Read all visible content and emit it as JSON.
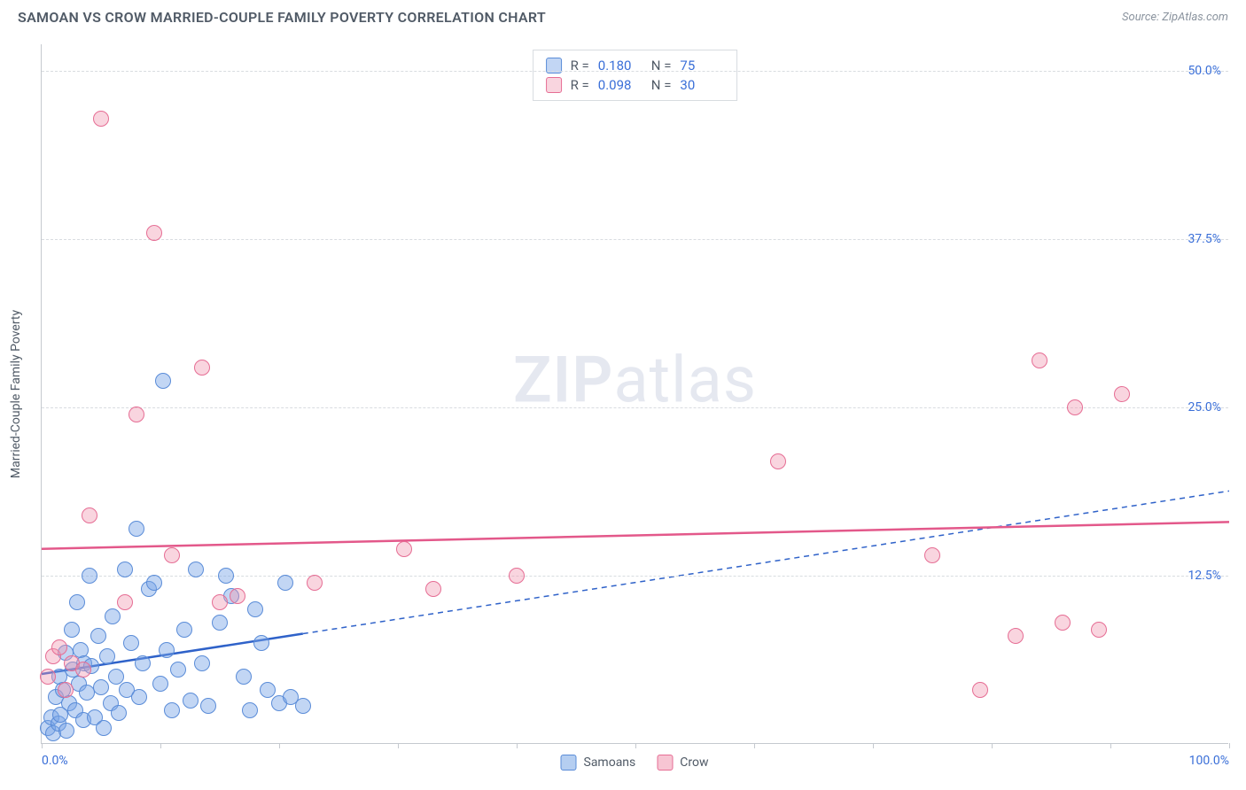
{
  "header": {
    "title": "SAMOAN VS CROW MARRIED-COUPLE FAMILY POVERTY CORRELATION CHART",
    "source": "Source: ZipAtlas.com"
  },
  "watermark": {
    "bold": "ZIP",
    "light": "atlas"
  },
  "chart": {
    "type": "scatter",
    "ylabel": "Married-Couple Family Poverty",
    "xlim": [
      0,
      100
    ],
    "ylim": [
      0,
      52
    ],
    "xticks": [
      0,
      10,
      20,
      30,
      40,
      50,
      60,
      70,
      80,
      90,
      100
    ],
    "xticklabels": {
      "0": "0.0%",
      "100": "100.0%"
    },
    "yticks": [
      12.5,
      25.0,
      37.5,
      50.0
    ],
    "yticklabels": [
      "12.5%",
      "25.0%",
      "37.5%",
      "50.0%"
    ],
    "background_color": "#ffffff",
    "grid_color": "#d8dce0",
    "axis_color": "#c5c9cf",
    "tick_label_color": "#3a6fd8",
    "text_color": "#505a66",
    "title_fontsize": 16,
    "label_fontsize": 14,
    "marker_radius": 9,
    "marker_stroke_width": 1.5,
    "series": [
      {
        "name": "Samoans",
        "fill": "rgba(120,165,230,0.45)",
        "stroke": "#5a8cd8",
        "line_color": "#2f62c9",
        "R": "0.180",
        "N": "75",
        "trend": {
          "x1": 0,
          "y1": 5.2,
          "x2": 100,
          "y2": 18.8,
          "solid_until_x": 22
        },
        "points": [
          [
            0.5,
            1.2
          ],
          [
            0.8,
            2.0
          ],
          [
            1.0,
            0.8
          ],
          [
            1.2,
            3.5
          ],
          [
            1.4,
            1.5
          ],
          [
            1.5,
            5.0
          ],
          [
            1.6,
            2.2
          ],
          [
            1.8,
            4.0
          ],
          [
            2.0,
            6.8
          ],
          [
            2.1,
            1.0
          ],
          [
            2.3,
            3.0
          ],
          [
            2.5,
            8.5
          ],
          [
            2.6,
            5.5
          ],
          [
            2.8,
            2.5
          ],
          [
            3.0,
            10.5
          ],
          [
            3.1,
            4.5
          ],
          [
            3.3,
            7.0
          ],
          [
            3.5,
            1.8
          ],
          [
            3.6,
            6.0
          ],
          [
            3.8,
            3.8
          ],
          [
            4.0,
            12.5
          ],
          [
            4.2,
            5.8
          ],
          [
            4.5,
            2.0
          ],
          [
            4.8,
            8.0
          ],
          [
            5.0,
            4.2
          ],
          [
            5.2,
            1.2
          ],
          [
            5.5,
            6.5
          ],
          [
            5.8,
            3.0
          ],
          [
            6.0,
            9.5
          ],
          [
            6.3,
            5.0
          ],
          [
            6.5,
            2.3
          ],
          [
            7.0,
            13.0
          ],
          [
            7.2,
            4.0
          ],
          [
            7.5,
            7.5
          ],
          [
            8.0,
            16.0
          ],
          [
            8.2,
            3.5
          ],
          [
            8.5,
            6.0
          ],
          [
            9.0,
            11.5
          ],
          [
            9.5,
            12.0
          ],
          [
            10.0,
            4.5
          ],
          [
            10.2,
            27.0
          ],
          [
            10.5,
            7.0
          ],
          [
            11.0,
            2.5
          ],
          [
            11.5,
            5.5
          ],
          [
            12.0,
            8.5
          ],
          [
            12.5,
            3.2
          ],
          [
            13.0,
            13.0
          ],
          [
            13.5,
            6.0
          ],
          [
            14.0,
            2.8
          ],
          [
            15.0,
            9.0
          ],
          [
            15.5,
            12.5
          ],
          [
            16.0,
            11.0
          ],
          [
            17.0,
            5.0
          ],
          [
            17.5,
            2.5
          ],
          [
            18.0,
            10.0
          ],
          [
            18.5,
            7.5
          ],
          [
            19.0,
            4.0
          ],
          [
            20.0,
            3.0
          ],
          [
            20.5,
            12.0
          ],
          [
            21.0,
            3.5
          ],
          [
            22.0,
            2.8
          ]
        ]
      },
      {
        "name": "Crow",
        "fill": "rgba(240,150,175,0.40)",
        "stroke": "#e66d94",
        "line_color": "#e3588a",
        "R": "0.098",
        "N": "30",
        "trend": {
          "x1": 0,
          "y1": 14.5,
          "x2": 100,
          "y2": 16.5,
          "solid_until_x": 100
        },
        "points": [
          [
            0.5,
            5.0
          ],
          [
            1.0,
            6.5
          ],
          [
            1.5,
            7.2
          ],
          [
            2.0,
            4.0
          ],
          [
            2.5,
            6.0
          ],
          [
            3.5,
            5.5
          ],
          [
            4.0,
            17.0
          ],
          [
            5.0,
            46.5
          ],
          [
            7.0,
            10.5
          ],
          [
            8.0,
            24.5
          ],
          [
            9.5,
            38.0
          ],
          [
            11.0,
            14.0
          ],
          [
            13.5,
            28.0
          ],
          [
            15.0,
            10.5
          ],
          [
            16.5,
            11.0
          ],
          [
            23.0,
            12.0
          ],
          [
            30.5,
            14.5
          ],
          [
            33.0,
            11.5
          ],
          [
            40.0,
            12.5
          ],
          [
            62.0,
            21.0
          ],
          [
            75.0,
            14.0
          ],
          [
            79.0,
            4.0
          ],
          [
            82.0,
            8.0
          ],
          [
            84.0,
            28.5
          ],
          [
            86.0,
            9.0
          ],
          [
            87.0,
            25.0
          ],
          [
            89.0,
            8.5
          ],
          [
            91.0,
            26.0
          ]
        ]
      }
    ]
  },
  "legend_bottom": [
    {
      "label": "Samoans",
      "fill": "rgba(120,165,230,0.55)",
      "stroke": "#5a8cd8"
    },
    {
      "label": "Crow",
      "fill": "rgba(240,150,175,0.55)",
      "stroke": "#e66d94"
    }
  ]
}
